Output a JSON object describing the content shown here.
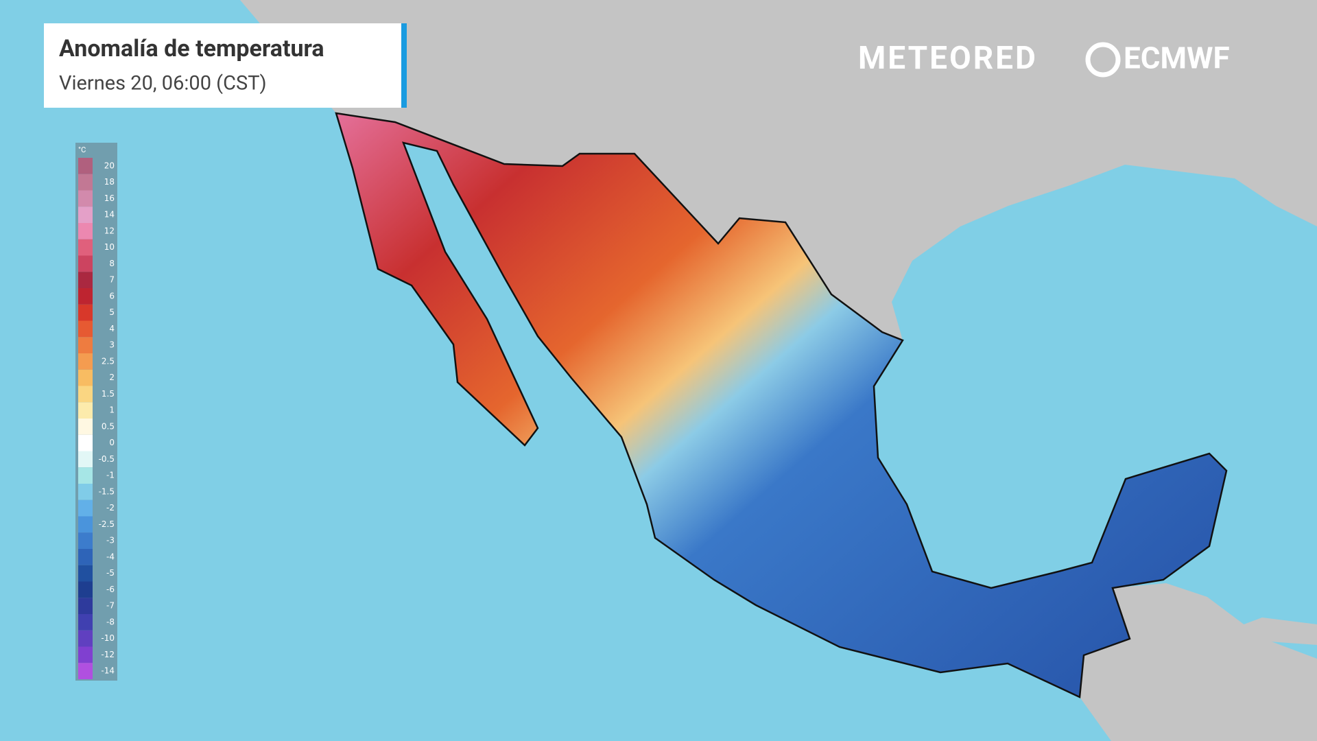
{
  "header": {
    "title": "Anomalía de temperatura",
    "subtitle": "Viernes 20, 06:00 (CST)"
  },
  "logos": {
    "meteored": "METEORED",
    "ecmwf": "ECMWF"
  },
  "legend": {
    "unit": "°C",
    "items": [
      {
        "value": 20,
        "color": "#b0607e"
      },
      {
        "value": 18,
        "color": "#c27894"
      },
      {
        "value": 16,
        "color": "#d28aac"
      },
      {
        "value": 14,
        "color": "#e4a0c8"
      },
      {
        "value": 12,
        "color": "#ec88b0"
      },
      {
        "value": 10,
        "color": "#e0607c"
      },
      {
        "value": 8,
        "color": "#cc4460"
      },
      {
        "value": 7,
        "color": "#aa2840"
      },
      {
        "value": 6,
        "color": "#be2430"
      },
      {
        "value": 5,
        "color": "#d8382a"
      },
      {
        "value": 4,
        "color": "#e65a32"
      },
      {
        "value": 3,
        "color": "#ee7c40"
      },
      {
        "value": 2.5,
        "color": "#f49c50"
      },
      {
        "value": 2,
        "color": "#f8bc62"
      },
      {
        "value": 1.5,
        "color": "#fad682"
      },
      {
        "value": 1,
        "color": "#fcebac"
      },
      {
        "value": 0.5,
        "color": "#fff8e2"
      },
      {
        "value": 0,
        "color": "#ffffff"
      },
      {
        "value": -0.5,
        "color": "#e2f7f6"
      },
      {
        "value": -1,
        "color": "#a6e6e6"
      },
      {
        "value": -1.5,
        "color": "#80cce8"
      },
      {
        "value": -2,
        "color": "#62b0e8"
      },
      {
        "value": -2.5,
        "color": "#4a94dc"
      },
      {
        "value": -3,
        "color": "#3c7ccc"
      },
      {
        "value": -4,
        "color": "#2e64b8"
      },
      {
        "value": -5,
        "color": "#2050a0"
      },
      {
        "value": -6,
        "color": "#1e3e90"
      },
      {
        "value": -7,
        "color": "#2e3a9c"
      },
      {
        "value": -8,
        "color": "#4040b0"
      },
      {
        "value": -10,
        "color": "#6040c0"
      },
      {
        "value": -12,
        "color": "#8040d0"
      },
      {
        "value": -14,
        "color": "#b050e0"
      }
    ]
  }
}
